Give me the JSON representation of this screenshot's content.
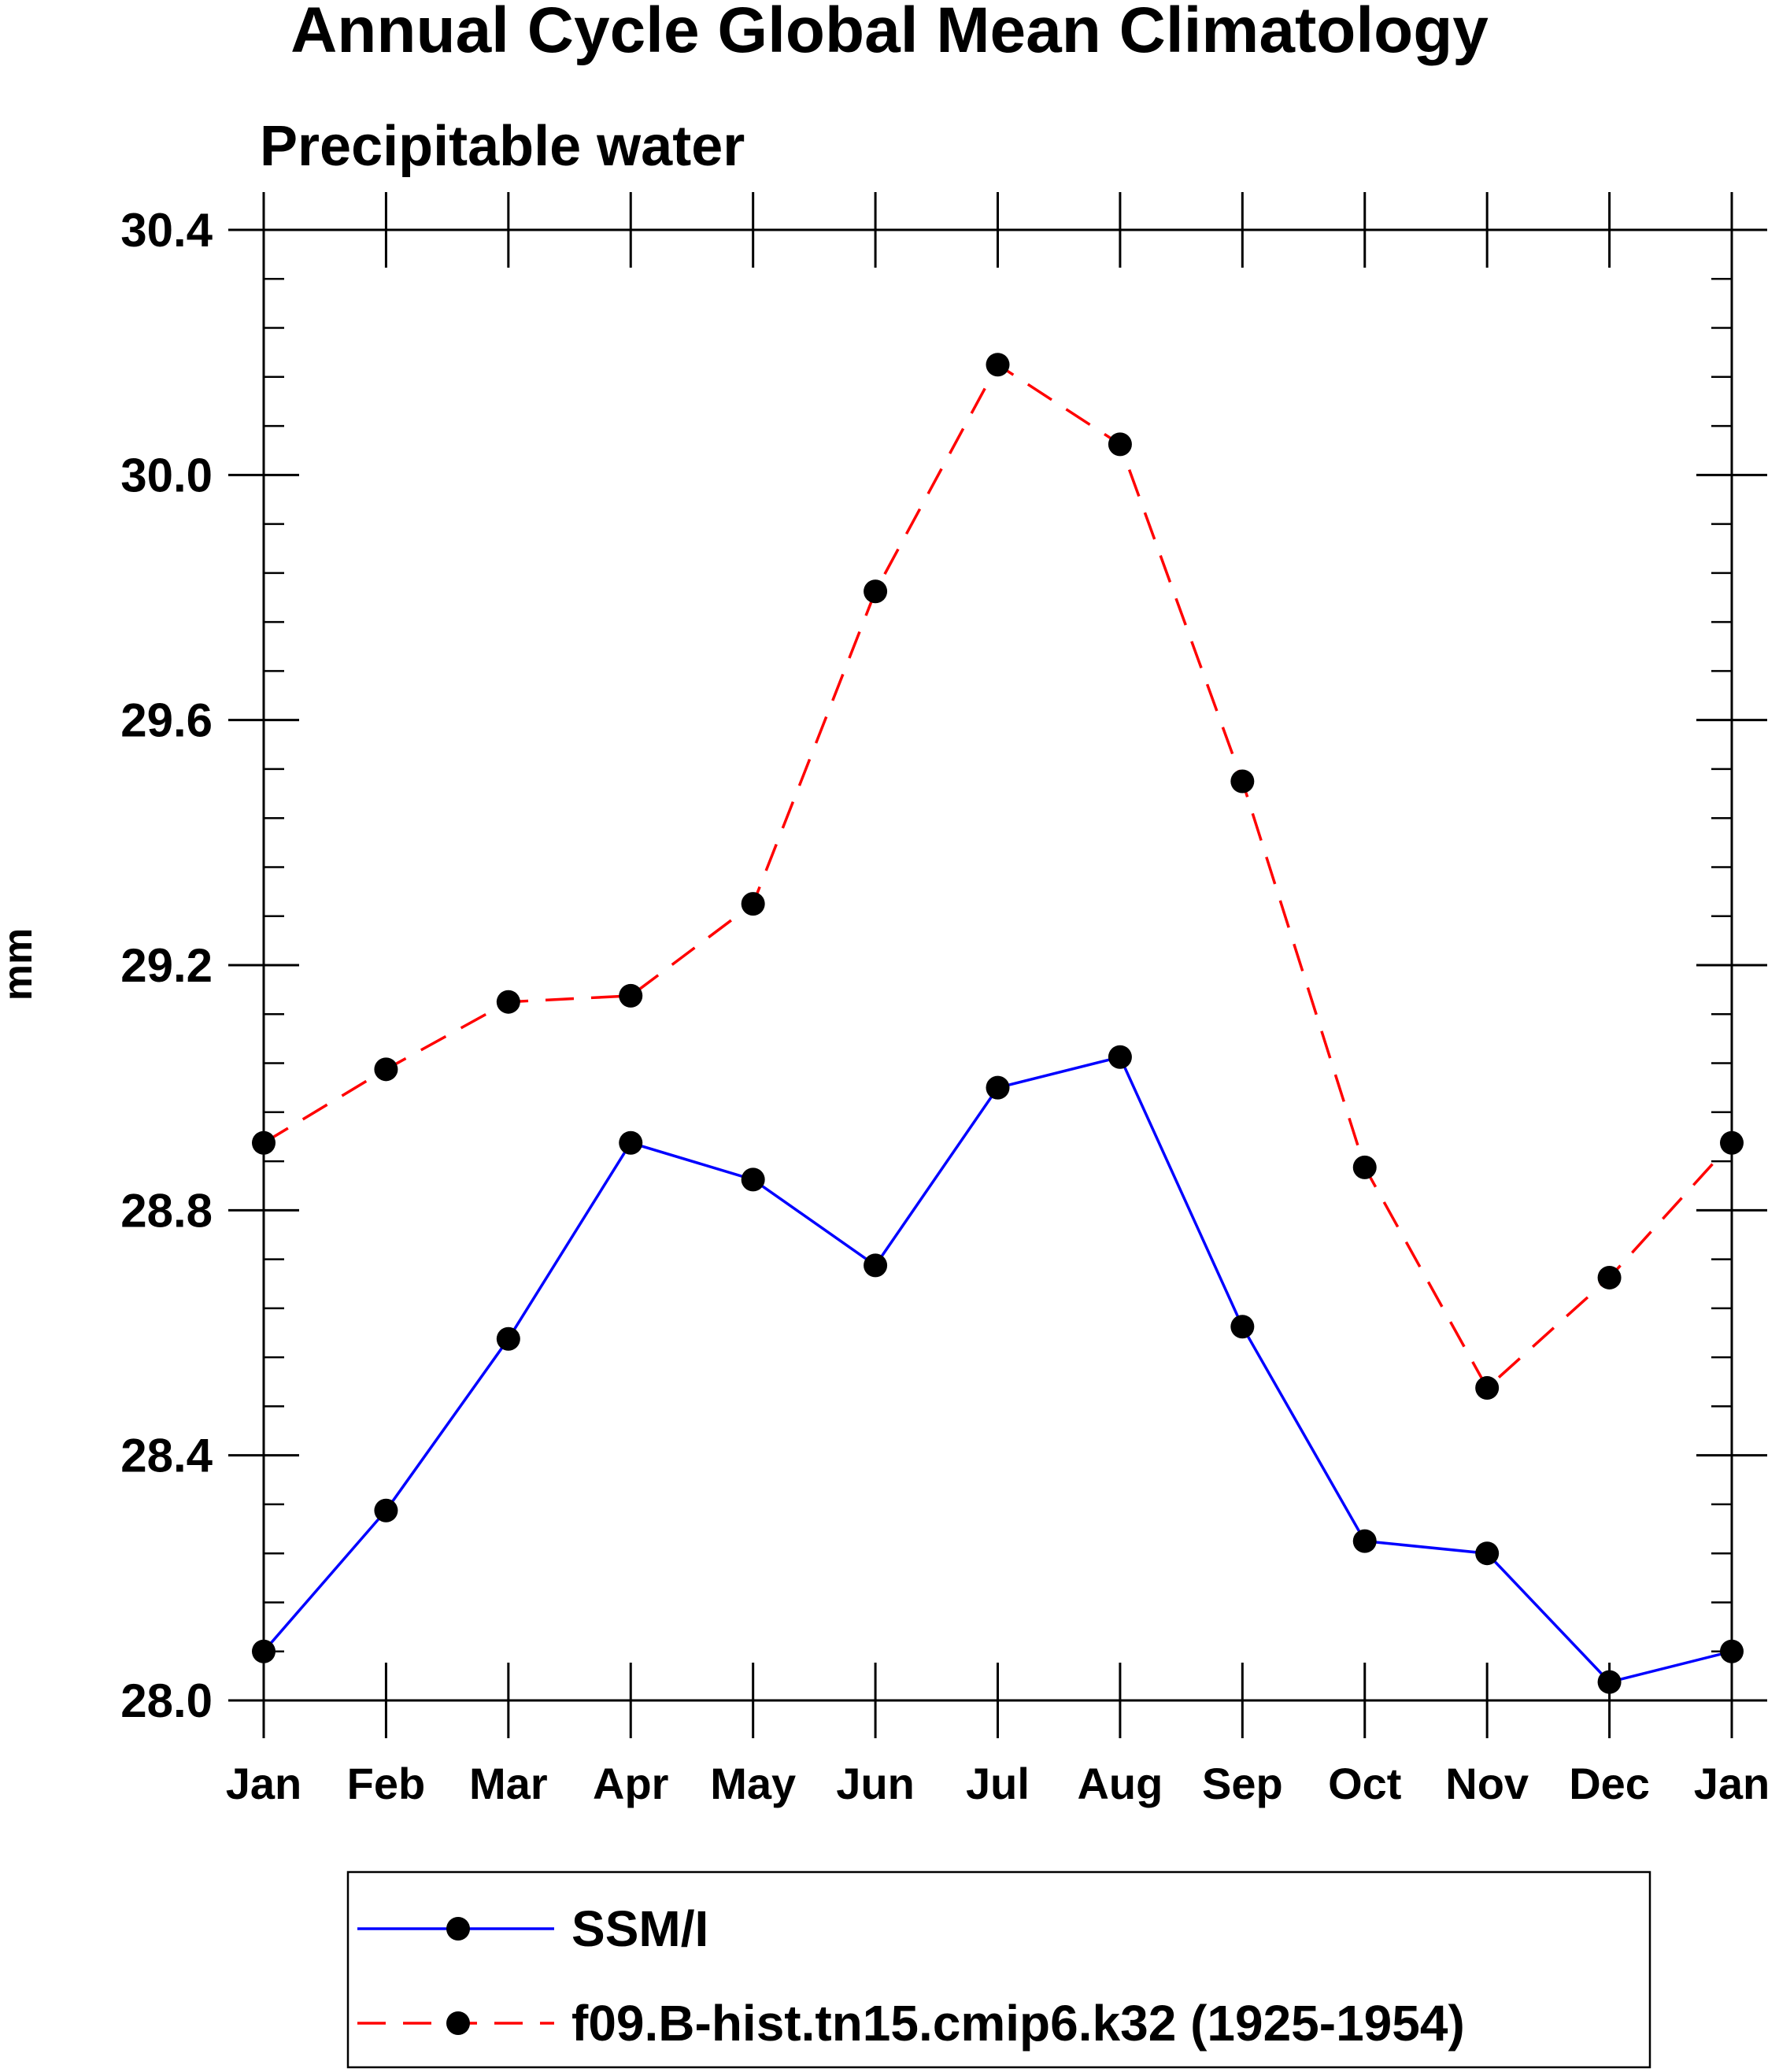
{
  "chart_data": {
    "type": "line",
    "title": "Annual Cycle Global Mean Climatology",
    "subtitle": "Precipitable water",
    "xlabel": "",
    "ylabel": "mm",
    "categories": [
      "Jan",
      "Feb",
      "Mar",
      "Apr",
      "May",
      "Jun",
      "Jul",
      "Aug",
      "Sep",
      "Oct",
      "Nov",
      "Dec",
      "Jan"
    ],
    "ylim": [
      28.0,
      30.4
    ],
    "yticks": [
      "28.0",
      "28.4",
      "28.8",
      "29.2",
      "29.6",
      "30.0",
      "30.4"
    ],
    "grid": false,
    "legend_position": "bottom",
    "series": [
      {
        "name": "SSM/I",
        "color": "#0000ff",
        "dash": "solid",
        "marker": "filled-circle",
        "values": [
          28.08,
          28.31,
          28.59,
          28.91,
          28.85,
          28.71,
          29.0,
          29.05,
          28.61,
          28.26,
          28.24,
          28.03,
          28.08
        ]
      },
      {
        "name": "f09.B-hist.tn15.cmip6.k32 (1925-1954)",
        "color": "#ff0000",
        "dash": "dashed",
        "marker": "filled-circle",
        "values": [
          28.91,
          29.03,
          29.14,
          29.15,
          29.3,
          29.81,
          30.18,
          30.05,
          29.5,
          28.87,
          28.51,
          28.69,
          28.91
        ]
      }
    ]
  }
}
